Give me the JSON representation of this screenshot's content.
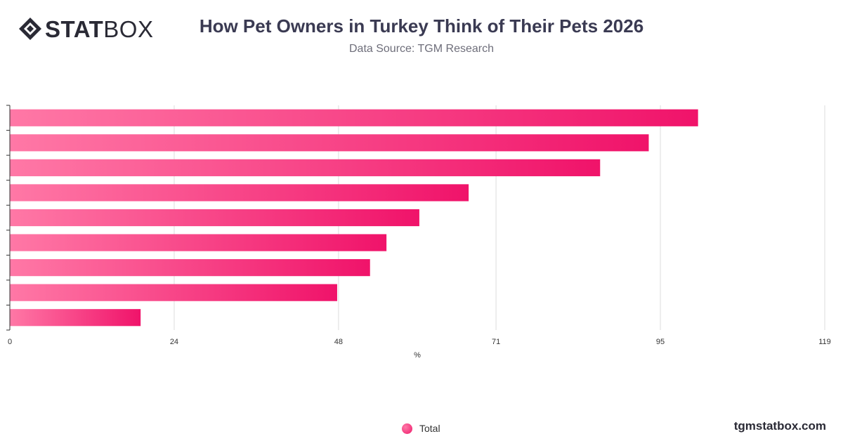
{
  "header": {
    "logo_bold": "STAT",
    "logo_light": "BOX",
    "title": "How Pet Owners in Turkey Think of Their Pets 2026",
    "subtitle": "Data Source: TGM Research"
  },
  "footer": {
    "legend_label": "Total",
    "url": "tgmstatbox.com"
  },
  "colors": {
    "bar_start": "#ff78a6",
    "bar_end": "#f0136a",
    "grid": "#dcdcdc",
    "axis": "#333333"
  },
  "chart_data": {
    "type": "bar",
    "orientation": "horizontal",
    "categories": [
      "",
      "",
      "",
      "",
      "",
      "",
      "",
      "",
      ""
    ],
    "series": [
      {
        "name": "Total",
        "values": [
          100.5,
          93.3,
          86.2,
          67,
          59.8,
          55,
          52.6,
          47.8,
          19.1
        ]
      }
    ],
    "xlabel": "%",
    "xlim": [
      0,
      119
    ],
    "xticks": [
      0,
      24,
      48,
      71,
      95,
      119
    ],
    "grid": true,
    "legend": "bottom-center"
  }
}
